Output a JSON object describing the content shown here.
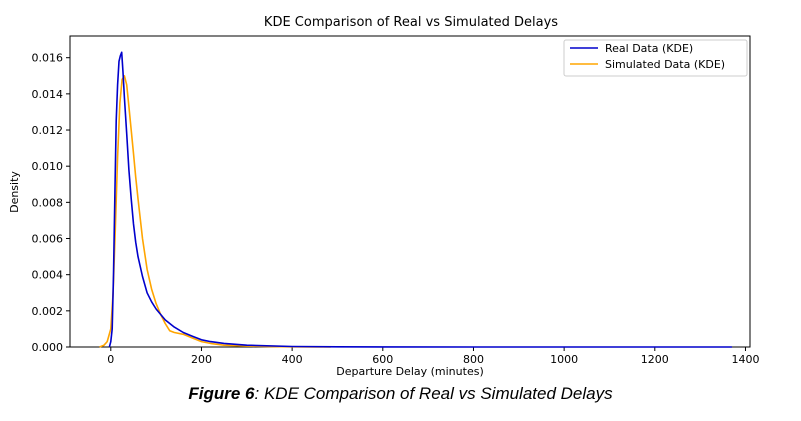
{
  "chart_data": {
    "type": "line",
    "title": "KDE Comparison of Real vs Simulated Delays",
    "xlabel": "Departure Delay (minutes)",
    "ylabel": "Density",
    "xlim": [
      -90,
      1410
    ],
    "ylim": [
      0,
      0.0172
    ],
    "xticks": [
      0,
      200,
      400,
      600,
      800,
      1000,
      1200,
      1400
    ],
    "xtick_labels": [
      "0",
      "200",
      "400",
      "600",
      "800",
      "1000",
      "1200",
      "1400"
    ],
    "yticks": [
      0,
      0.002,
      0.004,
      0.006,
      0.008,
      0.01,
      0.012,
      0.014,
      0.016
    ],
    "ytick_labels": [
      "0.000",
      "0.002",
      "0.004",
      "0.006",
      "0.008",
      "0.010",
      "0.012",
      "0.014",
      "0.016"
    ],
    "grid": false,
    "legend_position": "top-right",
    "series": [
      {
        "name": "Real Data (KDE)",
        "color": "#0000cc",
        "x": [
          -3,
          0,
          3,
          6,
          9,
          12,
          15,
          18,
          21,
          24,
          27,
          30,
          35,
          40,
          45,
          50,
          55,
          60,
          70,
          80,
          90,
          100,
          120,
          140,
          160,
          180,
          200,
          220,
          250,
          300,
          400,
          500,
          600,
          800,
          1000,
          1200,
          1370
        ],
        "y": [
          0,
          0.0003,
          0.001,
          0.004,
          0.0085,
          0.0125,
          0.0145,
          0.0158,
          0.0161,
          0.0163,
          0.0152,
          0.0138,
          0.0118,
          0.0098,
          0.0082,
          0.0068,
          0.0058,
          0.005,
          0.0039,
          0.003,
          0.0025,
          0.0021,
          0.0015,
          0.0011,
          0.0008,
          0.0006,
          0.0004,
          0.0003,
          0.0002,
          0.0001,
          3e-05,
          1e-05,
          5e-06,
          2e-06,
          1e-06,
          5e-07,
          0
        ]
      },
      {
        "name": "Simulated Data (KDE)",
        "color": "#ffa500",
        "x": [
          -25,
          -15,
          -8,
          0,
          5,
          10,
          15,
          20,
          25,
          30,
          35,
          40,
          45,
          50,
          55,
          60,
          70,
          80,
          90,
          100,
          110,
          120,
          130,
          140,
          160,
          180,
          200,
          220,
          250,
          300,
          350,
          400,
          450,
          485
        ],
        "y": [
          0,
          0.0001,
          0.0003,
          0.001,
          0.003,
          0.0065,
          0.0105,
          0.0135,
          0.0148,
          0.015,
          0.0145,
          0.0133,
          0.012,
          0.0107,
          0.0094,
          0.0082,
          0.006,
          0.0043,
          0.0032,
          0.0024,
          0.0018,
          0.0013,
          0.0009,
          0.0008,
          0.0007,
          0.0005,
          0.0003,
          0.0002,
          0.0001,
          5e-05,
          2e-05,
          1e-05,
          5e-06,
          0
        ]
      }
    ]
  },
  "caption": {
    "label": "Figure 6",
    "text": ": KDE Comparison of Real vs Simulated Delays"
  }
}
